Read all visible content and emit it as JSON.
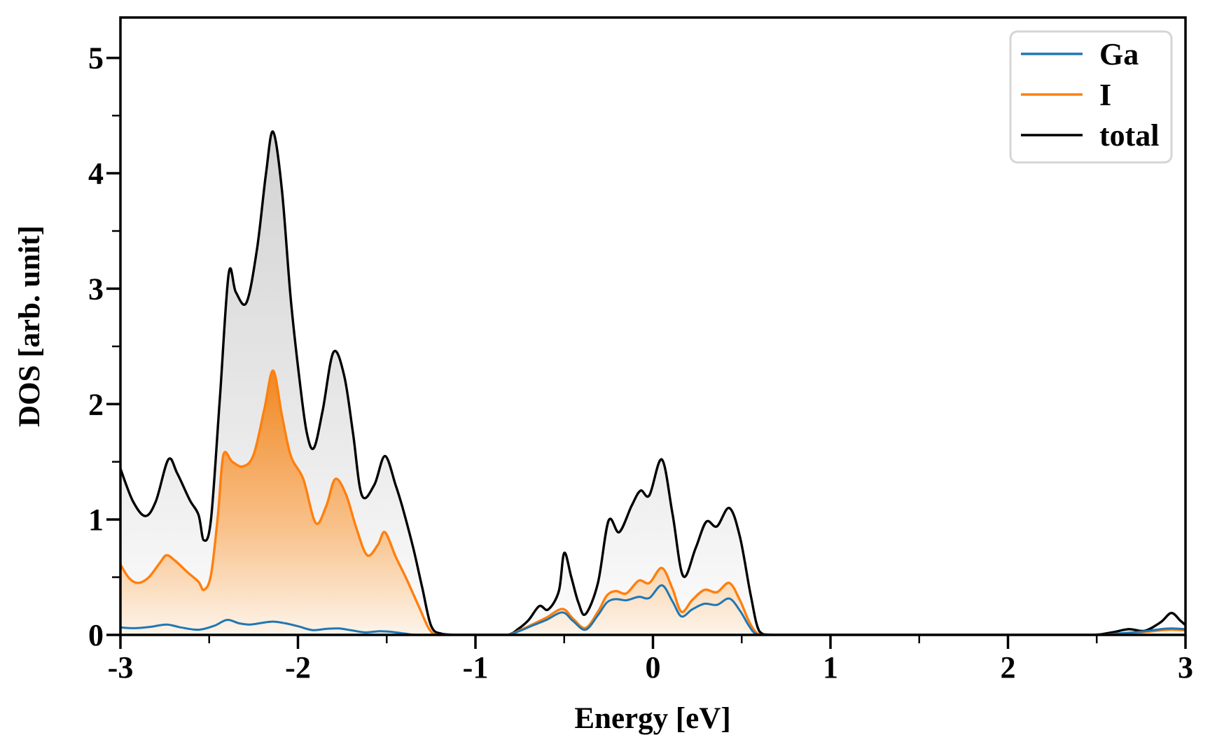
{
  "figure": {
    "background": "#ffffff",
    "frame_color": "#000000"
  },
  "chart_data": {
    "type": "area",
    "title": "",
    "xlabel": "Energy [eV]",
    "ylabel": "DOS [arb. unit]",
    "xlim": [
      -3,
      3
    ],
    "ylim": [
      0,
      5.35
    ],
    "x_ticks": [
      -3,
      -2,
      -1,
      0,
      1,
      2,
      3
    ],
    "x_tick_labels": [
      "-3",
      "-2",
      "-1",
      "0",
      "1",
      "2",
      "3"
    ],
    "y_ticks": [
      0,
      1,
      2,
      3,
      4,
      5
    ],
    "y_tick_labels": [
      "0",
      "1",
      "2",
      "3",
      "4",
      "5"
    ],
    "minor_tick_step": 0.5,
    "grid": false,
    "legend": {
      "position": "upper right",
      "entries": [
        "Ga",
        "I",
        "total"
      ],
      "border_color": "#d5d5d5"
    },
    "fill_gradients": {
      "gray": {
        "top_color": "#d2d2d2",
        "mid_color": "#e9e9e9",
        "bottom_color": "#fcfcfc",
        "top_value": 4.45
      },
      "orange": {
        "top_color": "#f0861f",
        "mid_color": "#f8c18a",
        "bottom_color": "#fdf4ea",
        "top_value": 2.32
      }
    },
    "draw_order": {
      "fills": [
        "total",
        "I"
      ],
      "lines": [
        "total",
        "I",
        "Ga"
      ]
    },
    "series": [
      {
        "name": "Ga",
        "color": "#1f77b4",
        "fill": "none",
        "line_width": 3.0,
        "points": [
          [
            -3,
            0.065
          ],
          [
            -2.92,
            0.058
          ],
          [
            -2.83,
            0.07
          ],
          [
            -2.74,
            0.09
          ],
          [
            -2.66,
            0.065
          ],
          [
            -2.56,
            0.045
          ],
          [
            -2.47,
            0.08
          ],
          [
            -2.4,
            0.13
          ],
          [
            -2.33,
            0.1
          ],
          [
            -2.27,
            0.09
          ],
          [
            -2.2,
            0.105
          ],
          [
            -2.14,
            0.115
          ],
          [
            -2.07,
            0.1
          ],
          [
            -2,
            0.075
          ],
          [
            -1.92,
            0.042
          ],
          [
            -1.84,
            0.052
          ],
          [
            -1.77,
            0.056
          ],
          [
            -1.7,
            0.04
          ],
          [
            -1.62,
            0.022
          ],
          [
            -1.54,
            0.032
          ],
          [
            -1.47,
            0.026
          ],
          [
            -1.4,
            0.012
          ],
          [
            -1.33,
            0
          ],
          [
            -1.15,
            0
          ],
          [
            -0.95,
            0
          ],
          [
            -0.82,
            0
          ],
          [
            -0.75,
            0.035
          ],
          [
            -0.68,
            0.08
          ],
          [
            -0.6,
            0.13
          ],
          [
            -0.51,
            0.195
          ],
          [
            -0.45,
            0.12
          ],
          [
            -0.38,
            0.045
          ],
          [
            -0.31,
            0.17
          ],
          [
            -0.26,
            0.28
          ],
          [
            -0.21,
            0.31
          ],
          [
            -0.15,
            0.3
          ],
          [
            -0.08,
            0.33
          ],
          [
            -0.02,
            0.32
          ],
          [
            0.05,
            0.43
          ],
          [
            0.11,
            0.29
          ],
          [
            0.16,
            0.16
          ],
          [
            0.22,
            0.22
          ],
          [
            0.29,
            0.27
          ],
          [
            0.36,
            0.26
          ],
          [
            0.43,
            0.315
          ],
          [
            0.49,
            0.21
          ],
          [
            0.54,
            0.08
          ],
          [
            0.58,
            0.01
          ],
          [
            0.65,
            0
          ],
          [
            1,
            0
          ],
          [
            1.5,
            0
          ],
          [
            2,
            0
          ],
          [
            2.5,
            0
          ],
          [
            2.62,
            0.012
          ],
          [
            2.75,
            0.028
          ],
          [
            2.85,
            0.048
          ],
          [
            2.92,
            0.056
          ],
          [
            3,
            0.05
          ]
        ]
      },
      {
        "name": "I",
        "color": "#ff7f0e",
        "fill": "orange",
        "line_width": 3.4,
        "points": [
          [
            -3,
            0.61
          ],
          [
            -2.95,
            0.49
          ],
          [
            -2.9,
            0.45
          ],
          [
            -2.84,
            0.5
          ],
          [
            -2.78,
            0.62
          ],
          [
            -2.74,
            0.69
          ],
          [
            -2.69,
            0.64
          ],
          [
            -2.62,
            0.54
          ],
          [
            -2.56,
            0.46
          ],
          [
            -2.53,
            0.39
          ],
          [
            -2.49,
            0.52
          ],
          [
            -2.45,
            1.05
          ],
          [
            -2.42,
            1.56
          ],
          [
            -2.37,
            1.5
          ],
          [
            -2.31,
            1.46
          ],
          [
            -2.25,
            1.56
          ],
          [
            -2.19,
            1.95
          ],
          [
            -2.14,
            2.29
          ],
          [
            -2.09,
            1.9
          ],
          [
            -2.04,
            1.55
          ],
          [
            -1.97,
            1.35
          ],
          [
            -1.9,
            0.97
          ],
          [
            -1.84,
            1.12
          ],
          [
            -1.79,
            1.35
          ],
          [
            -1.73,
            1.22
          ],
          [
            -1.67,
            0.92
          ],
          [
            -1.61,
            0.69
          ],
          [
            -1.55,
            0.78
          ],
          [
            -1.51,
            0.89
          ],
          [
            -1.45,
            0.68
          ],
          [
            -1.39,
            0.49
          ],
          [
            -1.32,
            0.25
          ],
          [
            -1.26,
            0.05
          ],
          [
            -1.21,
            0
          ],
          [
            -1.08,
            0
          ],
          [
            -0.95,
            0
          ],
          [
            -0.82,
            0
          ],
          [
            -0.75,
            0.04
          ],
          [
            -0.68,
            0.09
          ],
          [
            -0.6,
            0.15
          ],
          [
            -0.51,
            0.225
          ],
          [
            -0.45,
            0.14
          ],
          [
            -0.38,
            0.06
          ],
          [
            -0.31,
            0.2
          ],
          [
            -0.26,
            0.34
          ],
          [
            -0.21,
            0.38
          ],
          [
            -0.15,
            0.36
          ],
          [
            -0.08,
            0.47
          ],
          [
            -0.02,
            0.45
          ],
          [
            0.05,
            0.58
          ],
          [
            0.11,
            0.4
          ],
          [
            0.16,
            0.2
          ],
          [
            0.22,
            0.3
          ],
          [
            0.29,
            0.39
          ],
          [
            0.36,
            0.37
          ],
          [
            0.43,
            0.45
          ],
          [
            0.49,
            0.3
          ],
          [
            0.54,
            0.12
          ],
          [
            0.59,
            0.01
          ],
          [
            0.66,
            0
          ],
          [
            1,
            0
          ],
          [
            1.5,
            0
          ],
          [
            2,
            0
          ],
          [
            2.5,
            0
          ],
          [
            2.62,
            0.01
          ],
          [
            2.75,
            0.022
          ],
          [
            2.85,
            0.038
          ],
          [
            2.92,
            0.046
          ],
          [
            3,
            0.04
          ]
        ]
      },
      {
        "name": "total",
        "color": "#000000",
        "fill": "gray",
        "line_width": 3.4,
        "points": [
          [
            -3,
            1.44
          ],
          [
            -2.93,
            1.16
          ],
          [
            -2.86,
            1.03
          ],
          [
            -2.8,
            1.16
          ],
          [
            -2.73,
            1.52
          ],
          [
            -2.68,
            1.4
          ],
          [
            -2.61,
            1.17
          ],
          [
            -2.56,
            1.04
          ],
          [
            -2.53,
            0.82
          ],
          [
            -2.49,
            1.0
          ],
          [
            -2.44,
            2.05
          ],
          [
            -2.39,
            3.13
          ],
          [
            -2.35,
            2.97
          ],
          [
            -2.29,
            2.88
          ],
          [
            -2.23,
            3.35
          ],
          [
            -2.18,
            4.0
          ],
          [
            -2.14,
            4.36
          ],
          [
            -2.09,
            3.85
          ],
          [
            -2.04,
            2.9
          ],
          [
            -1.99,
            2.2
          ],
          [
            -1.95,
            1.75
          ],
          [
            -1.91,
            1.62
          ],
          [
            -1.86,
            1.95
          ],
          [
            -1.8,
            2.45
          ],
          [
            -1.74,
            2.25
          ],
          [
            -1.69,
            1.75
          ],
          [
            -1.64,
            1.21
          ],
          [
            -1.57,
            1.3
          ],
          [
            -1.51,
            1.55
          ],
          [
            -1.45,
            1.3
          ],
          [
            -1.41,
            1.1
          ],
          [
            -1.35,
            0.75
          ],
          [
            -1.3,
            0.41
          ],
          [
            -1.25,
            0.08
          ],
          [
            -1.19,
            0.01
          ],
          [
            -1.08,
            0
          ],
          [
            -0.95,
            0
          ],
          [
            -0.82,
            0
          ],
          [
            -0.76,
            0.05
          ],
          [
            -0.7,
            0.13
          ],
          [
            -0.64,
            0.25
          ],
          [
            -0.59,
            0.22
          ],
          [
            -0.53,
            0.38
          ],
          [
            -0.5,
            0.71
          ],
          [
            -0.46,
            0.5
          ],
          [
            -0.42,
            0.28
          ],
          [
            -0.38,
            0.18
          ],
          [
            -0.31,
            0.45
          ],
          [
            -0.25,
            0.99
          ],
          [
            -0.19,
            0.89
          ],
          [
            -0.12,
            1.12
          ],
          [
            -0.07,
            1.25
          ],
          [
            -0.02,
            1.21
          ],
          [
            0.05,
            1.52
          ],
          [
            0.11,
            1.05
          ],
          [
            0.17,
            0.51
          ],
          [
            0.24,
            0.75
          ],
          [
            0.3,
            0.98
          ],
          [
            0.36,
            0.94
          ],
          [
            0.43,
            1.1
          ],
          [
            0.49,
            0.85
          ],
          [
            0.55,
            0.35
          ],
          [
            0.6,
            0.03
          ],
          [
            0.68,
            0
          ],
          [
            1,
            0
          ],
          [
            1.5,
            0
          ],
          [
            2,
            0
          ],
          [
            2.45,
            0
          ],
          [
            2.58,
            0.02
          ],
          [
            2.68,
            0.05
          ],
          [
            2.77,
            0.035
          ],
          [
            2.86,
            0.11
          ],
          [
            2.92,
            0.19
          ],
          [
            2.97,
            0.125
          ],
          [
            3,
            0.085
          ]
        ]
      }
    ]
  }
}
